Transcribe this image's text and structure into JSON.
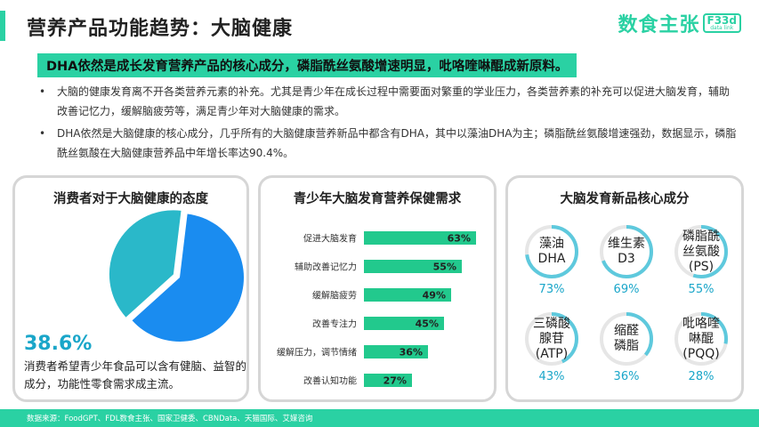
{
  "page": {
    "title": "营养产品功能趋势：大脑健康",
    "brand_text": "数食主张",
    "brand_badge_top": "F33d",
    "brand_badge_bottom": "data link",
    "headline": "DHA依然是成长发育营养产品的核心成分，磷脂酰丝氨酸增速明显，吡咯喹啉醌成新原料。",
    "bullets": [
      "大脑的健康发育离不开各类营养元素的补充。尤其是青少年在成长过程中需要面对繁重的学业压力，各类营养素的补充可以促进大脑发育，辅助改善记忆力，缓解脑疲劳等，满足青少年对大脑健康的需求。",
      "DHA依然是大脑健康的核心成分，几乎所有的大脑健康营养新品中都含有DHA，其中以藻油DHA为主；磷脂酰丝氨酸增速强劲，数据显示，磷脂酰丝氨酸在大脑健康营养品中年增长率达90.4%。"
    ],
    "footer": "数据来源：FoodGPT、FDL数食主张、国家卫健委、CBNData、天猫国际、艾媒咨询"
  },
  "panels": {
    "attitude": {
      "title": "消费者对于大脑健康的态度",
      "big_pct": "38.6%",
      "note": "消费者希望青少年食品可以含有健脑、益智的成分，功能性零食需求成主流。"
    },
    "needs": {
      "title": "青少年大脑发育营养保健需求"
    },
    "ingredients": {
      "title": "大脑发育新品核心成分"
    }
  },
  "colors": {
    "accent": "#2ad1a3",
    "pie_main": "#1a8cf0",
    "pie_slice": "#2ab8c9",
    "bar": "#22c98d",
    "pct_text": "#1aa6c9",
    "ring_track": "#e6e6e6",
    "ring_fill": "#5ec9dd"
  },
  "chart_data": [
    {
      "type": "pie",
      "title": "消费者对于大脑健康的态度",
      "slices": [
        {
          "value": 38.6
        },
        {
          "value": 61.4
        }
      ]
    },
    {
      "type": "bar",
      "title": "青少年大脑发育营养保健需求",
      "orientation": "horizontal",
      "categories": [
        "促进大脑发育",
        "辅助改善记忆力",
        "缓解脑疲劳",
        "改善专注力",
        "缓解压力，调节情绪",
        "改善认知功能"
      ],
      "values": [
        63,
        55,
        49,
        45,
        36,
        27
      ],
      "labels": [
        "63%",
        "55%",
        "49%",
        "45%",
        "36%",
        "27%"
      ],
      "xlim": [
        0,
        100
      ]
    },
    {
      "type": "table",
      "title": "大脑发育新品核心成分",
      "items": [
        {
          "name": "藻油\nDHA",
          "value": 73,
          "label": "73%"
        },
        {
          "name": "维生素\nD3",
          "value": 69,
          "label": "69%"
        },
        {
          "name": "磷脂酰\n丝氨酸\n(PS)",
          "value": 55,
          "label": "55%"
        },
        {
          "name": "三磷酸\n腺苷\n(ATP)",
          "value": 43,
          "label": "43%"
        },
        {
          "name": "缩醛\n磷脂",
          "value": 36,
          "label": "36%"
        },
        {
          "name": "吡咯喹\n啉醌\n(PQQ)",
          "value": 28,
          "label": "28%"
        }
      ]
    }
  ]
}
